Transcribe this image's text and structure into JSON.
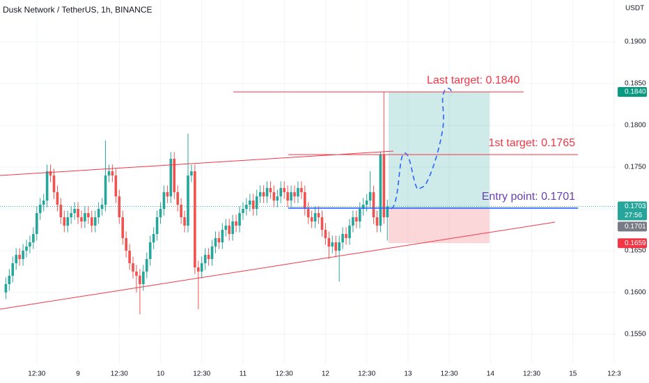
{
  "chart_data": {
    "type": "candlestick",
    "title": "Dusk Network / TetherUS, 1h, BINANCE",
    "currency": "USDT",
    "up_color": "#26a69a",
    "down_color": "#ef5350",
    "grid": true,
    "xlim": [
      -22.7,
      156.6
    ],
    "xticks": [
      {
        "value": -12,
        "label": "12:30"
      },
      {
        "value": 0,
        "label": "9"
      },
      {
        "value": 12,
        "label": "12:30"
      },
      {
        "value": 24,
        "label": "10"
      },
      {
        "value": 36,
        "label": "12:30"
      },
      {
        "value": 48,
        "label": "11"
      },
      {
        "value": 60,
        "label": "12:30"
      },
      {
        "value": 72,
        "label": "12"
      },
      {
        "value": 84,
        "label": "12:30"
      },
      {
        "value": 96,
        "label": "13"
      },
      {
        "value": 108,
        "label": "12:30"
      },
      {
        "value": 120,
        "label": "14"
      },
      {
        "value": 132,
        "label": "12:30"
      },
      {
        "value": 144,
        "label": "15"
      },
      {
        "value": 156,
        "label": "12:3"
      }
    ],
    "ylim": [
      0.1515,
      0.195
    ],
    "yticks": [
      {
        "value": 0.155,
        "label": "0.1550"
      },
      {
        "value": 0.16,
        "label": "0.1600"
      },
      {
        "value": 0.165,
        "label": "0.1650"
      },
      {
        "value": 0.17,
        "label": "0.1700"
      },
      {
        "value": 0.175,
        "label": "0.1750"
      },
      {
        "value": 0.18,
        "label": "0.1800"
      },
      {
        "value": 0.185,
        "label": "0.1850"
      },
      {
        "value": 0.19,
        "label": "0.1900"
      }
    ],
    "x": [
      -21,
      -20,
      -19,
      -18,
      -17,
      -16,
      -15,
      -14,
      -13,
      -12,
      -11,
      -10,
      -9,
      -8,
      -7,
      -6,
      -5,
      -4,
      -3,
      -2,
      -1,
      0,
      1,
      2,
      3,
      4,
      5,
      6,
      7,
      8,
      9,
      10,
      11,
      12,
      13,
      14,
      15,
      16,
      17,
      18,
      19,
      20,
      21,
      22,
      23,
      24,
      25,
      26,
      27,
      28,
      29,
      30,
      31,
      32,
      33,
      34,
      35,
      36,
      37,
      38,
      39,
      40,
      41,
      42,
      43,
      44,
      45,
      46,
      47,
      48,
      49,
      50,
      51,
      52,
      53,
      54,
      55,
      56,
      57,
      58,
      59,
      60,
      61,
      62,
      63,
      64,
      65,
      66,
      67,
      68,
      69,
      70,
      71,
      72,
      73,
      74,
      75,
      76,
      77,
      78,
      79,
      80,
      81,
      82,
      83,
      84,
      85,
      86,
      87,
      88,
      89,
      90
    ],
    "open": [
      0.16,
      0.161,
      0.162,
      0.1635,
      0.1645,
      0.164,
      0.165,
      0.1655,
      0.166,
      0.167,
      0.1695,
      0.1705,
      0.171,
      0.1745,
      0.174,
      0.172,
      0.1705,
      0.169,
      0.168,
      0.169,
      0.1695,
      0.17,
      0.169,
      0.1685,
      0.1695,
      0.169,
      0.168,
      0.169,
      0.17,
      0.1705,
      0.174,
      0.1745,
      0.174,
      0.1715,
      0.169,
      0.1665,
      0.165,
      0.1635,
      0.1625,
      0.162,
      0.161,
      0.1625,
      0.164,
      0.166,
      0.167,
      0.169,
      0.17,
      0.172,
      0.1715,
      0.176,
      0.172,
      0.1705,
      0.169,
      0.168,
      0.174,
      0.1745,
      0.163,
      0.1625,
      0.1635,
      0.1645,
      0.164,
      0.1655,
      0.1665,
      0.166,
      0.1675,
      0.168,
      0.167,
      0.1685,
      0.168,
      0.1695,
      0.17,
      0.1705,
      0.171,
      0.17,
      0.1715,
      0.172,
      0.1715,
      0.1725,
      0.172,
      0.171,
      0.1715,
      0.1725,
      0.172,
      0.171,
      0.172,
      0.1715,
      0.1725,
      0.172,
      0.17,
      0.169,
      0.1685,
      0.1695,
      0.169,
      0.1675,
      0.1665,
      0.1655,
      0.166,
      0.165,
      0.166,
      0.167,
      0.1665,
      0.168,
      0.169,
      0.1685,
      0.17,
      0.1705,
      0.171,
      0.172,
      0.169,
      0.168,
      0.1765,
      0.169
    ],
    "high": [
      0.1618,
      0.1628,
      0.1643,
      0.1653,
      0.1653,
      0.1658,
      0.1663,
      0.1668,
      0.1678,
      0.1703,
      0.1713,
      0.1718,
      0.1753,
      0.1753,
      0.1748,
      0.1728,
      0.1713,
      0.1698,
      0.1698,
      0.1703,
      0.1708,
      0.1708,
      0.1698,
      0.1703,
      0.1703,
      0.1698,
      0.1698,
      0.1708,
      0.1713,
      0.1782,
      0.1753,
      0.1753,
      0.1748,
      0.1723,
      0.1698,
      0.1673,
      0.1658,
      0.1643,
      0.1633,
      0.1628,
      0.1633,
      0.1648,
      0.1668,
      0.1678,
      0.1698,
      0.1708,
      0.1728,
      0.1728,
      0.1768,
      0.1768,
      0.1728,
      0.1713,
      0.1698,
      0.179,
      0.1753,
      0.1753,
      0.1638,
      0.1643,
      0.1653,
      0.1653,
      0.1663,
      0.1673,
      0.1673,
      0.1683,
      0.1688,
      0.1688,
      0.1693,
      0.1693,
      0.1703,
      0.1708,
      0.1713,
      0.1718,
      0.1718,
      0.1723,
      0.1728,
      0.1728,
      0.1733,
      0.1733,
      0.1728,
      0.1723,
      0.1733,
      0.1733,
      0.1728,
      0.1728,
      0.1728,
      0.1733,
      0.1733,
      0.1728,
      0.1708,
      0.1698,
      0.1703,
      0.1703,
      0.1698,
      0.1683,
      0.1673,
      0.1668,
      0.1668,
      0.1668,
      0.1678,
      0.1678,
      0.1688,
      0.1698,
      0.1698,
      0.1708,
      0.1713,
      0.1718,
      0.1745,
      0.1728,
      0.1698,
      0.1768,
      0.184,
      0.1711
    ],
    "low": [
      0.1592,
      0.1602,
      0.1612,
      0.1627,
      0.1632,
      0.1632,
      0.1642,
      0.1647,
      0.1652,
      0.1662,
      0.1687,
      0.1697,
      0.1702,
      0.1732,
      0.1712,
      0.1697,
      0.1682,
      0.1672,
      0.1672,
      0.1682,
      0.1687,
      0.1682,
      0.1677,
      0.1677,
      0.1682,
      0.1672,
      0.1672,
      0.1682,
      0.1692,
      0.1697,
      0.1732,
      0.1732,
      0.1707,
      0.1682,
      0.1657,
      0.1642,
      0.1627,
      0.1617,
      0.16,
      0.1574,
      0.1602,
      0.1617,
      0.1632,
      0.1652,
      0.1662,
      0.1682,
      0.1692,
      0.1707,
      0.1707,
      0.1712,
      0.1697,
      0.1682,
      0.1672,
      0.1672,
      0.1732,
      0.1622,
      0.158,
      0.1617,
      0.1627,
      0.1632,
      0.1632,
      0.1647,
      0.1652,
      0.1652,
      0.1667,
      0.1662,
      0.1662,
      0.1672,
      0.1672,
      0.1687,
      0.1692,
      0.1697,
      0.1692,
      0.1692,
      0.1707,
      0.1707,
      0.1707,
      0.1712,
      0.1702,
      0.1702,
      0.1707,
      0.1712,
      0.1702,
      0.1702,
      0.1707,
      0.1707,
      0.1712,
      0.1692,
      0.1682,
      0.1677,
      0.1677,
      0.1682,
      0.1667,
      0.1657,
      0.164,
      0.1647,
      0.1642,
      0.1613,
      0.1652,
      0.1657,
      0.1657,
      0.1672,
      0.1677,
      0.1677,
      0.1692,
      0.1697,
      0.1702,
      0.1682,
      0.1672,
      0.1672,
      0.1682,
      0.1662
    ],
    "close": [
      0.161,
      0.162,
      0.1635,
      0.1645,
      0.164,
      0.165,
      0.1655,
      0.166,
      0.167,
      0.1695,
      0.1705,
      0.171,
      0.1745,
      0.174,
      0.172,
      0.1705,
      0.169,
      0.168,
      0.169,
      0.1695,
      0.17,
      0.169,
      0.1685,
      0.1695,
      0.169,
      0.168,
      0.169,
      0.17,
      0.1705,
      0.174,
      0.1745,
      0.174,
      0.1715,
      0.169,
      0.1665,
      0.165,
      0.1635,
      0.1625,
      0.162,
      0.161,
      0.1625,
      0.164,
      0.166,
      0.167,
      0.169,
      0.17,
      0.172,
      0.1715,
      0.176,
      0.172,
      0.1705,
      0.169,
      0.168,
      0.174,
      0.1745,
      0.163,
      0.1625,
      0.1635,
      0.1645,
      0.164,
      0.1655,
      0.1665,
      0.166,
      0.1675,
      0.168,
      0.167,
      0.1685,
      0.168,
      0.1695,
      0.17,
      0.1705,
      0.171,
      0.17,
      0.1715,
      0.172,
      0.1715,
      0.1725,
      0.172,
      0.171,
      0.1715,
      0.1725,
      0.172,
      0.171,
      0.172,
      0.1715,
      0.1725,
      0.172,
      0.17,
      0.169,
      0.1685,
      0.1695,
      0.169,
      0.1675,
      0.1665,
      0.1655,
      0.166,
      0.165,
      0.166,
      0.167,
      0.1665,
      0.168,
      0.169,
      0.1685,
      0.17,
      0.1705,
      0.171,
      0.172,
      0.169,
      0.168,
      0.1765,
      0.169,
      0.1703
    ],
    "levels": [
      {
        "label": "Last target: 0.1840",
        "value": 0.184,
        "color": "#f23645",
        "text_color": "#f23645"
      },
      {
        "label": "1st target: 0.1765",
        "value": 0.1765,
        "color": "#f23645",
        "text_color": "#f23645"
      },
      {
        "label": "Entry point: 0.1701",
        "value": 0.1701,
        "color": "#2962ff",
        "text_color": "#6a3fb0"
      }
    ],
    "position": {
      "entry": 0.1701,
      "target": 0.184,
      "stop": 0.1659
    },
    "price_tags": [
      {
        "value": 0.184,
        "label": "0.1840",
        "color": "#089981"
      },
      {
        "value": 0.1703,
        "label": "0.1703",
        "color": "#26a69a",
        "countdown": "27:56"
      },
      {
        "value": 0.1701,
        "label": "0.1701",
        "color": "#787b86"
      },
      {
        "value": 0.1659,
        "label": "0.1659",
        "color": "#f23645"
      }
    ]
  }
}
